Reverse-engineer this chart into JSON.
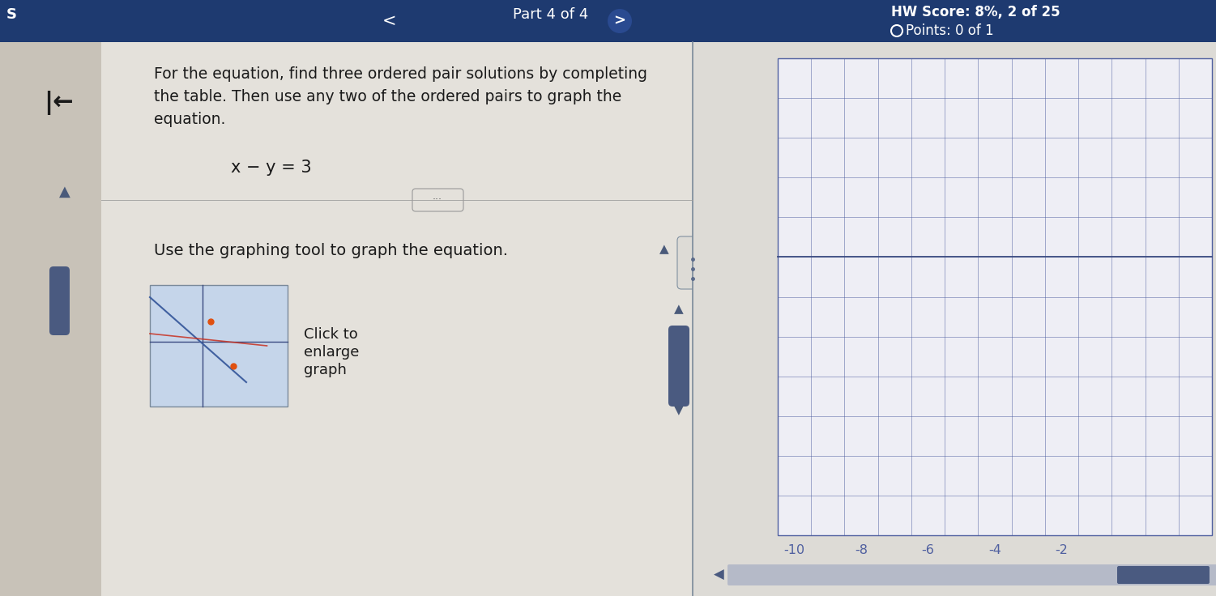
{
  "bg_color": "#dddbd6",
  "header_bg": "#1e3a70",
  "header_text_color": "#ffffff",
  "header_part_text": "Part 4 of 4",
  "header_score_text": "HW Score: 8%, 2 of 25",
  "header_points_text": "Points: 0 of 1",
  "main_bg": "#e4e1db",
  "left_sidebar_bg": "#c8c2b8",
  "content_bg": "#e4e1db",
  "instruction_text_line1": "For the equation, find three ordered pair solutions by completing",
  "instruction_text_line2": "the table. Then use any two of the ordered pairs to graph the",
  "instruction_text_line3": "equation.",
  "equation_text": "x − y = 3",
  "use_graphing_text": "Use the graphing tool to graph the equation.",
  "click_to_text": "Click to",
  "enlarge_text": "enlarge",
  "graph_text": "graph",
  "mini_graph_bg": "#c5d5ea",
  "grid_color": "#5060a0",
  "axis_color": "#3a4a80",
  "line_blue": "#4060a0",
  "line_red": "#c83020",
  "dot_color": "#e05010",
  "grid_x_labels": [
    "-10",
    "-8",
    "-6",
    "-4",
    "-2"
  ],
  "divider_color": "#7a8a9a",
  "separator_color": "#9a9a9a",
  "right_panel_bg": "#dddbd6",
  "scroll_color": "#4a5a80",
  "handle_bg": "#dddbd6",
  "handle_border": "#8090a0"
}
